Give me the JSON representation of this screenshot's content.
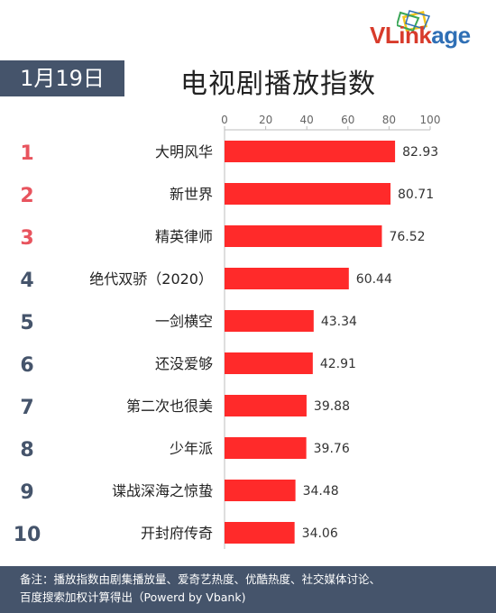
{
  "logo": {
    "brand_main": "VLink",
    "brand_suffix": "age"
  },
  "header": {
    "date": "1月19日",
    "title": "电视剧播放指数"
  },
  "chart_data": {
    "type": "bar",
    "orientation": "horizontal",
    "categories": [
      "大明风华",
      "新世界",
      "精英律师",
      "绝代双骄（2020）",
      "一剑横空",
      "还没爱够",
      "第二次也很美",
      "少年派",
      "谍战深海之惊蛰",
      "开封府传奇"
    ],
    "ranks": [
      "1",
      "2",
      "3",
      "4",
      "5",
      "6",
      "7",
      "8",
      "9",
      "10"
    ],
    "values": [
      82.93,
      80.71,
      76.52,
      60.44,
      43.34,
      42.91,
      39.88,
      39.76,
      34.48,
      34.06
    ],
    "value_labels": [
      "82.93",
      "80.71",
      "76.52",
      "60.44",
      "43.34",
      "42.91",
      "39.88",
      "39.76",
      "34.48",
      "34.06"
    ],
    "xlim": [
      0,
      100
    ],
    "xticks": [
      "0",
      "20",
      "40",
      "60",
      "80",
      "100"
    ],
    "axis_position": "top",
    "grid": false,
    "colors": {
      "bar": "#ff2a2a",
      "rank_top3": "#e8545e",
      "rank_other": "#45546b",
      "axis": "#bdbdbd"
    }
  },
  "footer": {
    "line1": "备注：播放指数由剧集播放量、爱奇艺热度、优酷热度、社交媒体讨论、",
    "line2": "百度搜索加权计算得出（Powerd by Vbank)"
  }
}
